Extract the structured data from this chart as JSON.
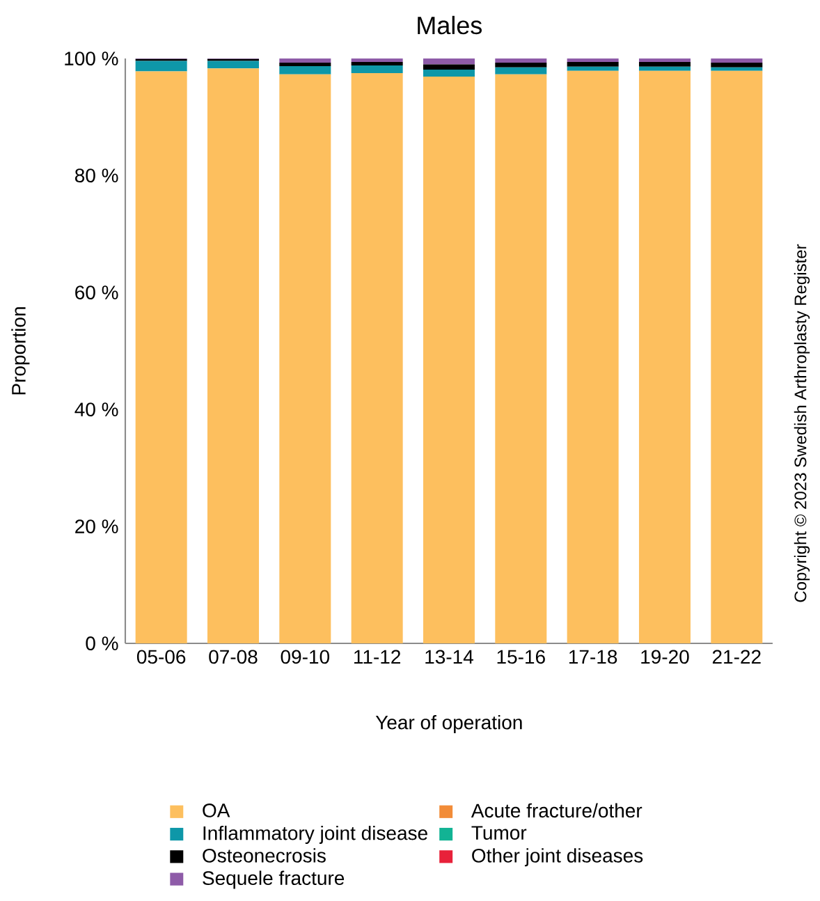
{
  "chart_data": {
    "type": "bar",
    "stacked": true,
    "title": "Males",
    "xlabel": "Year of operation",
    "ylabel": "Proportion",
    "categories": [
      "05-06",
      "07-08",
      "09-10",
      "11-12",
      "13-14",
      "15-16",
      "17-18",
      "19-20",
      "21-22"
    ],
    "series": [
      {
        "name": "OA",
        "color": "#fdbf5e",
        "values": [
          97.8,
          98.3,
          97.3,
          97.5,
          96.9,
          97.3,
          97.9,
          97.9,
          97.9
        ]
      },
      {
        "name": "Inflammatory joint disease",
        "color": "#0e97a8",
        "values": [
          1.8,
          1.3,
          1.4,
          1.3,
          1.2,
          1.2,
          0.7,
          0.7,
          0.6
        ]
      },
      {
        "name": "Osteonecrosis",
        "color": "#000000",
        "values": [
          0.3,
          0.3,
          0.6,
          0.6,
          0.9,
          0.8,
          0.8,
          0.8,
          0.8
        ]
      },
      {
        "name": "Sequele fracture",
        "color": "#8e5ba8",
        "values": [
          0.1,
          0.1,
          0.7,
          0.6,
          1.0,
          0.7,
          0.6,
          0.6,
          0.7
        ]
      },
      {
        "name": "Acute fracture/other",
        "color": "#f28c38",
        "values": [
          0,
          0,
          0,
          0,
          0,
          0,
          0,
          0,
          0
        ]
      },
      {
        "name": "Tumor",
        "color": "#12b394",
        "values": [
          0,
          0,
          0,
          0,
          0,
          0,
          0,
          0,
          0
        ]
      },
      {
        "name": "Other joint diseases",
        "color": "#e8213a",
        "values": [
          0,
          0,
          0,
          0,
          0,
          0,
          0,
          0,
          0
        ]
      }
    ],
    "ylim": [
      0,
      100
    ],
    "yticks": [
      {
        "value": 0,
        "label": "0 %"
      },
      {
        "value": 20,
        "label": "20 %"
      },
      {
        "value": 40,
        "label": "40 %"
      },
      {
        "value": 60,
        "label": "60 %"
      },
      {
        "value": 80,
        "label": "80 %"
      },
      {
        "value": 100,
        "label": "100 %"
      }
    ],
    "legend": "bottom",
    "annotations": [
      "Copyright © 2023 Swedish Arthroplasty Register"
    ]
  }
}
